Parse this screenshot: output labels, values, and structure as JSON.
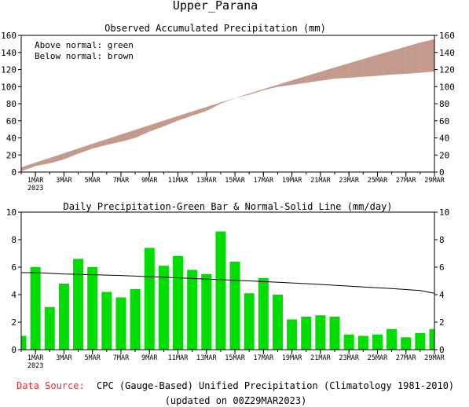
{
  "page": {
    "title": "Upper_Parana",
    "source_label": "Data Source:",
    "source_text": "CPC (Gauge-Based) Unified Precipitation (Climatology 1981-2010)",
    "updated_text": "(updated on 00Z29MAR2023)",
    "colors": {
      "above": "#00cc00",
      "below": "#c49a8c",
      "source_label": "#e03030",
      "bar": "#00dd00"
    }
  },
  "chart_data": [
    {
      "type": "area",
      "title": "Observed Accumulated Precipitation (mm)",
      "legend": [
        "Above normal: green",
        "Below normal: brown"
      ],
      "legend_position": "top-left",
      "ylim": [
        0,
        160
      ],
      "yticks": [
        0,
        20,
        40,
        60,
        80,
        100,
        120,
        140,
        160
      ],
      "xticks": [
        "1MAR",
        "3MAR",
        "5MAR",
        "7MAR",
        "9MAR",
        "11MAR",
        "13MAR",
        "15MAR",
        "17MAR",
        "19MAR",
        "21MAR",
        "23MAR",
        "25MAR",
        "27MAR",
        "29MAR"
      ],
      "xtick_year": "2023",
      "x": [
        "28FEB",
        "1MAR",
        "2MAR",
        "3MAR",
        "4MAR",
        "5MAR",
        "6MAR",
        "7MAR",
        "8MAR",
        "9MAR",
        "10MAR",
        "11MAR",
        "12MAR",
        "13MAR",
        "14MAR",
        "15MAR",
        "16MAR",
        "17MAR",
        "18MAR",
        "19MAR",
        "20MAR",
        "21MAR",
        "22MAR",
        "23MAR",
        "24MAR",
        "25MAR",
        "26MAR",
        "27MAR",
        "28MAR",
        "29MAR"
      ],
      "series": [
        {
          "name": "Observed",
          "values": [
            1.0,
            7.0,
            10.2,
            15.0,
            21.5,
            27.5,
            31.7,
            35.5,
            39.9,
            47.3,
            53.4,
            60.2,
            66.0,
            71.5,
            80.1,
            86.5,
            90.6,
            95.8,
            99.8,
            102.0,
            104.5,
            106.9,
            109.3,
            110.4,
            111.5,
            112.6,
            114.1,
            115.0,
            116.2,
            117.7
          ]
        },
        {
          "name": "Normal",
          "values": [
            5.5,
            11.1,
            16.6,
            22.1,
            27.6,
            33.1,
            38.5,
            44.0,
            49.4,
            54.8,
            60.2,
            65.6,
            70.9,
            76.2,
            81.5,
            86.7,
            91.9,
            97.1,
            102.2,
            107.3,
            112.4,
            117.4,
            122.4,
            127.4,
            132.3,
            137.2,
            142.0,
            146.8,
            151.6,
            155.5
          ]
        }
      ]
    },
    {
      "type": "bar",
      "title": "Daily Precipitation-Green Bar & Normal-Solid Line (mm/day)",
      "ylim": [
        0,
        10
      ],
      "yticks": [
        0,
        2,
        4,
        6,
        8,
        10
      ],
      "xticks": [
        "1MAR",
        "3MAR",
        "5MAR",
        "7MAR",
        "9MAR",
        "11MAR",
        "13MAR",
        "15MAR",
        "17MAR",
        "19MAR",
        "21MAR",
        "23MAR",
        "25MAR",
        "27MAR",
        "29MAR"
      ],
      "xtick_year": "2023",
      "x": [
        "28FEB",
        "1MAR",
        "2MAR",
        "3MAR",
        "4MAR",
        "5MAR",
        "6MAR",
        "7MAR",
        "8MAR",
        "9MAR",
        "10MAR",
        "11MAR",
        "12MAR",
        "13MAR",
        "14MAR",
        "15MAR",
        "16MAR",
        "17MAR",
        "18MAR",
        "19MAR",
        "20MAR",
        "21MAR",
        "22MAR",
        "23MAR",
        "24MAR",
        "25MAR",
        "26MAR",
        "27MAR",
        "28MAR",
        "29MAR"
      ],
      "series": [
        {
          "name": "Daily",
          "values": [
            1.0,
            6.0,
            3.1,
            4.8,
            6.6,
            6.0,
            4.2,
            3.8,
            4.4,
            7.4,
            6.1,
            6.8,
            5.8,
            5.5,
            8.6,
            6.4,
            4.1,
            5.2,
            4.0,
            2.2,
            2.4,
            2.5,
            2.4,
            1.1,
            1.0,
            1.1,
            1.5,
            0.9,
            1.2,
            1.5
          ]
        },
        {
          "name": "Normal",
          "values": [
            5.6,
            5.6,
            5.55,
            5.5,
            5.48,
            5.45,
            5.42,
            5.39,
            5.35,
            5.3,
            5.27,
            5.22,
            5.18,
            5.13,
            5.09,
            5.04,
            5.0,
            4.95,
            4.9,
            4.85,
            4.8,
            4.74,
            4.68,
            4.62,
            4.56,
            4.5,
            4.44,
            4.37,
            4.3,
            4.1
          ]
        }
      ]
    }
  ]
}
